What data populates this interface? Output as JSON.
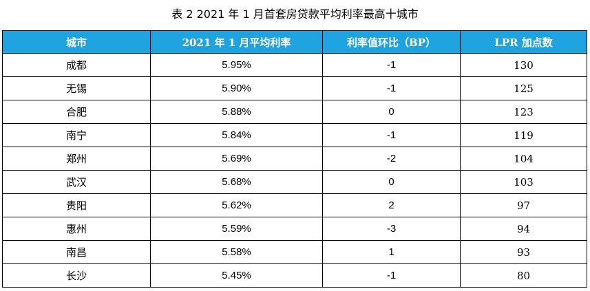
{
  "title": "表 2  2021 年 1 月首套房贷款平均利率最高十城市",
  "table": {
    "header_bg": "#1fa3e0",
    "columns": [
      "城市",
      "2021 年 1 月平均利率",
      "利率值环比（BP）",
      "LPR 加点数"
    ],
    "rows": [
      {
        "city": "成都",
        "rate": "5.95%",
        "change": "-1",
        "lpr": "130"
      },
      {
        "city": "无锡",
        "rate": "5.90%",
        "change": "-1",
        "lpr": "125"
      },
      {
        "city": "合肥",
        "rate": "5.88%",
        "change": "0",
        "lpr": "123"
      },
      {
        "city": "南宁",
        "rate": "5.84%",
        "change": "-1",
        "lpr": "119"
      },
      {
        "city": "郑州",
        "rate": "5.69%",
        "change": "-2",
        "lpr": "104"
      },
      {
        "city": "武汉",
        "rate": "5.68%",
        "change": "0",
        "lpr": "103"
      },
      {
        "city": "贵阳",
        "rate": "5.62%",
        "change": "2",
        "lpr": "97"
      },
      {
        "city": "惠州",
        "rate": "5.59%",
        "change": "-3",
        "lpr": "94"
      },
      {
        "city": "南昌",
        "rate": "5.58%",
        "change": "1",
        "lpr": "93"
      },
      {
        "city": "长沙",
        "rate": "5.45%",
        "change": "-1",
        "lpr": "80"
      }
    ]
  }
}
